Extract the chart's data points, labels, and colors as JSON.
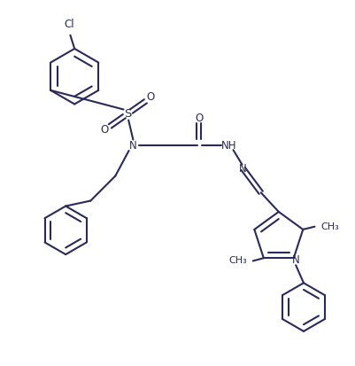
{
  "bg_color": "#ffffff",
  "line_color": "#2a2a5a",
  "lw": 1.5,
  "fs": 8.5,
  "figsize": [
    4.01,
    4.13
  ],
  "dpi": 100,
  "xlim": [
    0,
    10
  ],
  "ylim": [
    0,
    10.3
  ]
}
